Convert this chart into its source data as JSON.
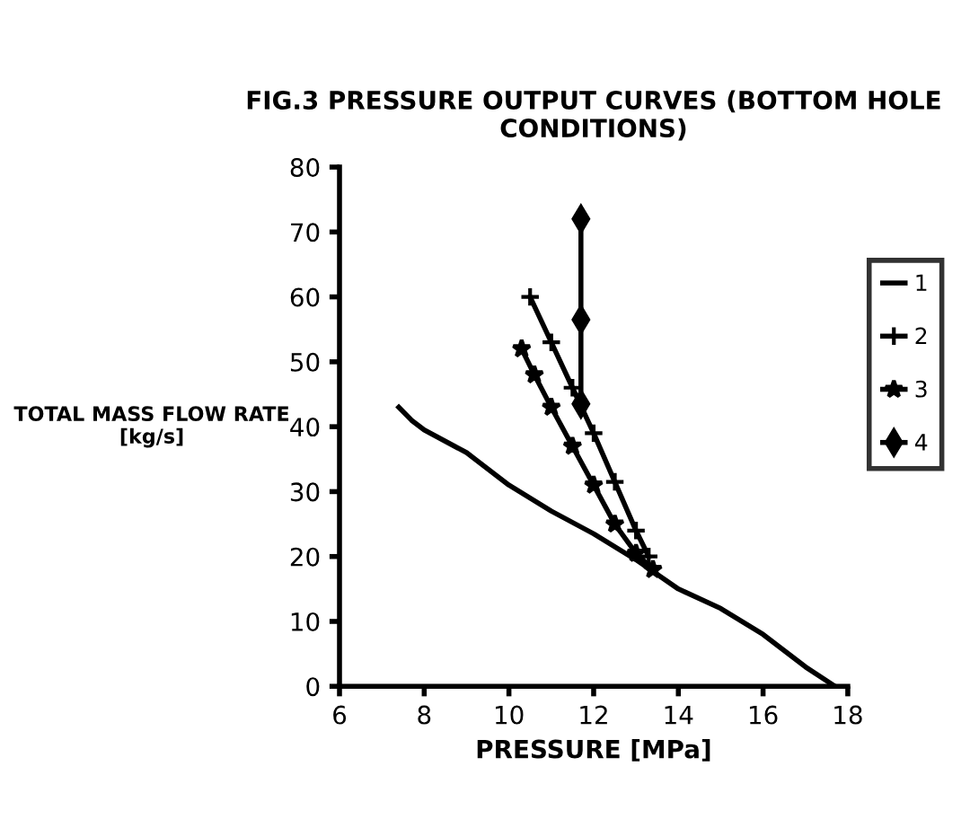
{
  "chart_data": {
    "type": "line",
    "title": "FIG.3 PRESSURE OUTPUT CURVES (BOTTOM HOLE\nCONDITIONS)",
    "xlabel": "PRESSURE [MPa]",
    "ylabel": "TOTAL MASS FLOW RATE\n[kg/s]",
    "xlim": [
      6,
      18
    ],
    "xticks": [
      6,
      8,
      10,
      12,
      14,
      16,
      18
    ],
    "ylim": [
      0,
      80
    ],
    "yticks": [
      0,
      10,
      20,
      30,
      40,
      50,
      60,
      70,
      80
    ],
    "grid": false,
    "legend": "right",
    "series": [
      {
        "name": "1",
        "color": "#000000",
        "marker": "none",
        "x": [
          7.4,
          7.7,
          8,
          9,
          10,
          11,
          12,
          13,
          14,
          15,
          16,
          17,
          17.7
        ],
        "values": [
          43,
          41,
          39.5,
          36,
          31,
          27,
          23.5,
          19.5,
          15,
          12,
          8,
          3,
          0
        ]
      },
      {
        "name": "2",
        "color": "#000000",
        "marker": "cross",
        "x": [
          10.5,
          11,
          11.5,
          12,
          12.5,
          13,
          13.3
        ],
        "values": [
          60,
          53,
          46,
          39,
          31.5,
          24,
          20
        ]
      },
      {
        "name": "3",
        "color": "#000000",
        "marker": "star",
        "x": [
          10.3,
          10.6,
          11,
          11.5,
          12,
          12.5,
          13,
          13.4
        ],
        "values": [
          52,
          48,
          43,
          37,
          31,
          25,
          20.5,
          18
        ]
      },
      {
        "name": "4",
        "color": "#000000",
        "marker": "diamond",
        "x": [
          11.7,
          11.7,
          11.7
        ],
        "values": [
          72,
          56.5,
          43.5
        ]
      }
    ]
  }
}
